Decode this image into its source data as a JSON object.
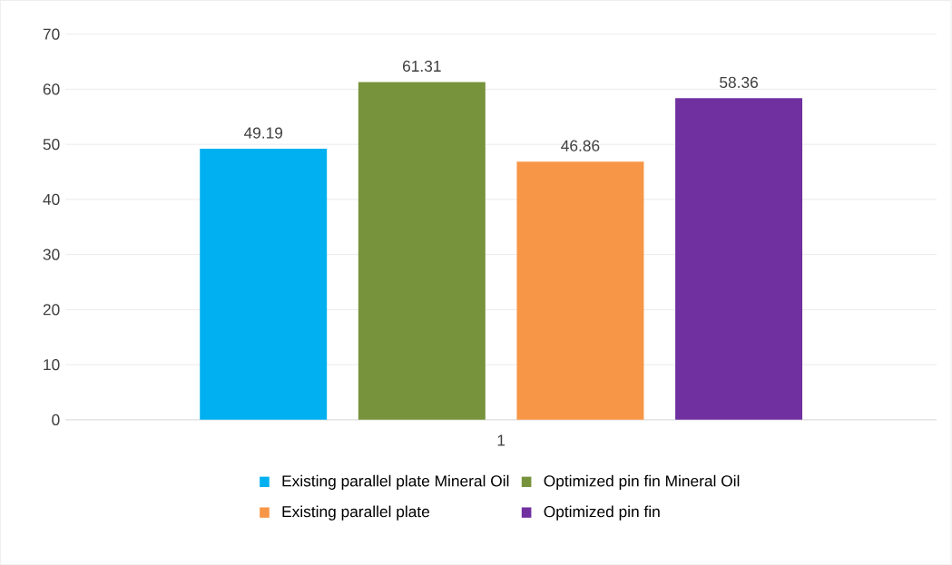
{
  "chart_data": {
    "type": "bar",
    "categories": [
      "1"
    ],
    "series": [
      {
        "name": "Existing parallel plate Mineral Oil",
        "color": "#00b0f0",
        "values": [
          49.19
        ]
      },
      {
        "name": "Optimized pin fin Mineral Oil",
        "color": "#77933c",
        "values": [
          61.31
        ]
      },
      {
        "name": "Existing parallel plate",
        "color": "#f79646",
        "values": [
          46.86
        ]
      },
      {
        "name": "Optimized pin fin",
        "color": "#7030a0",
        "values": [
          58.36
        ]
      }
    ],
    "ylim": [
      0,
      70
    ],
    "yticks": [
      0,
      10,
      20,
      30,
      40,
      50,
      60,
      70
    ],
    "grid": "y",
    "legend": "bottom",
    "data_labels": true
  }
}
